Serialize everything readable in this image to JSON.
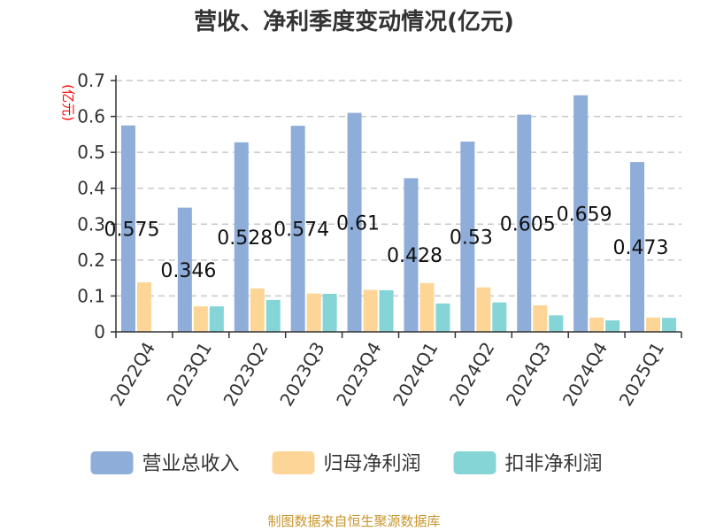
{
  "chart_data": {
    "type": "bar",
    "title": "营收、净利季度变动情况(亿元)",
    "ylabel": "(亿元)",
    "xlabel": "",
    "ylim": [
      0,
      0.7
    ],
    "yticks": [
      "0",
      "0.1",
      "0.2",
      "0.3",
      "0.4",
      "0.5",
      "0.6",
      "0.7"
    ],
    "grid": true,
    "legend_position": "bottom",
    "categories": [
      "2022Q4",
      "2023Q1",
      "2023Q2",
      "2023Q3",
      "2023Q4",
      "2024Q1",
      "2024Q2",
      "2024Q3",
      "2024Q4",
      "2025Q1"
    ],
    "series": [
      {
        "name": "营业总收入",
        "color": "#8fadd9",
        "values": [
          0.575,
          0.346,
          0.528,
          0.574,
          0.61,
          0.428,
          0.53,
          0.605,
          0.659,
          0.473
        ],
        "labels": [
          "0.575",
          "0.346",
          "0.528",
          "0.574",
          "0.61",
          "0.428",
          "0.53",
          "0.605",
          "0.659",
          "0.473"
        ]
      },
      {
        "name": "归母净利润",
        "color": "#fdd597",
        "values": [
          0.138,
          0.071,
          0.121,
          0.107,
          0.117,
          0.136,
          0.124,
          0.074,
          0.04,
          0.04
        ]
      },
      {
        "name": "扣非净利润",
        "color": "#85d5d6",
        "values": [
          0,
          0.071,
          0.089,
          0.106,
          0.116,
          0.079,
          0.082,
          0.046,
          0.032,
          0.039
        ]
      }
    ]
  },
  "footer": {
    "source": "制图数据来自恒生聚源数据库"
  }
}
